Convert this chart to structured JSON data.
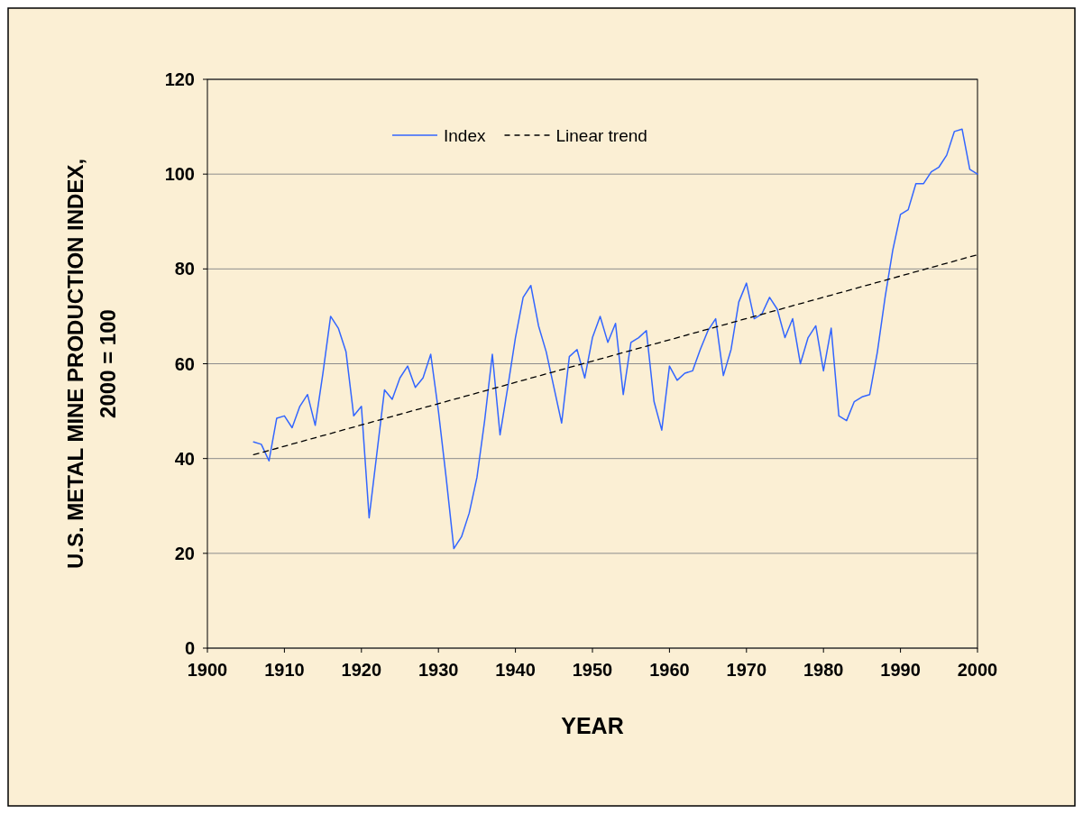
{
  "chart_data": {
    "type": "line",
    "xlabel": "YEAR",
    "ylabel": "U.S. METAL MINE PRODUCTION INDEX,\n2000 = 100",
    "xlim": [
      1900,
      2000
    ],
    "xticks": [
      1900,
      1910,
      1920,
      1930,
      1940,
      1950,
      1960,
      1970,
      1980,
      1990,
      2000
    ],
    "ylim": [
      0,
      120
    ],
    "yticks": [
      0,
      20,
      40,
      60,
      80,
      100,
      120
    ],
    "grid": "y",
    "legend": "top",
    "marker": "none",
    "series": [
      {
        "name": "Index",
        "color": "#3366ff",
        "line_style": "solid",
        "x": [
          1906,
          1907,
          1908,
          1909,
          1910,
          1911,
          1912,
          1913,
          1914,
          1915,
          1916,
          1917,
          1918,
          1919,
          1920,
          1921,
          1922,
          1923,
          1924,
          1925,
          1926,
          1927,
          1928,
          1929,
          1930,
          1931,
          1932,
          1933,
          1934,
          1935,
          1936,
          1937,
          1938,
          1939,
          1940,
          1941,
          1942,
          1943,
          1944,
          1945,
          1946,
          1947,
          1948,
          1949,
          1950,
          1951,
          1952,
          1953,
          1954,
          1955,
          1956,
          1957,
          1958,
          1959,
          1960,
          1961,
          1962,
          1963,
          1964,
          1965,
          1966,
          1967,
          1968,
          1969,
          1970,
          1971,
          1972,
          1973,
          1974,
          1975,
          1976,
          1977,
          1978,
          1979,
          1980,
          1981,
          1982,
          1983,
          1984,
          1985,
          1986,
          1987,
          1988,
          1989,
          1990,
          1991,
          1992,
          1993,
          1994,
          1995,
          1996,
          1997,
          1998,
          1999,
          2000
        ],
        "values": [
          43.5,
          43,
          39.5,
          48.5,
          49,
          46.5,
          51,
          53.5,
          47,
          58,
          70,
          67.5,
          62.5,
          49,
          51,
          27.5,
          41,
          54.5,
          52.5,
          57,
          59.5,
          55,
          57,
          62,
          50,
          36,
          21,
          23.5,
          28.5,
          36,
          48,
          62,
          45,
          55,
          65.5,
          74,
          76.5,
          68,
          62.5,
          55,
          47.5,
          61.5,
          63,
          57,
          65.5,
          70,
          64.5,
          68.5,
          53.5,
          64.5,
          65.5,
          67,
          52,
          46,
          59.5,
          56.5,
          58,
          58.5,
          63,
          67,
          69.5,
          57.5,
          63,
          73,
          77,
          69.5,
          70.5,
          74,
          71.5,
          65.5,
          69.5,
          60,
          65.5,
          68,
          58.5,
          67.5,
          49,
          48,
          52,
          53,
          53.5,
          62.5,
          74,
          84,
          91.5,
          92.5,
          98,
          98,
          100.5,
          101.5,
          104,
          109,
          109.5,
          101,
          100
        ]
      },
      {
        "name": "Linear trend",
        "color": "#000000",
        "line_style": "dashed",
        "x": [
          1906,
          2000
        ],
        "values": [
          40.8,
          83
        ]
      }
    ]
  }
}
